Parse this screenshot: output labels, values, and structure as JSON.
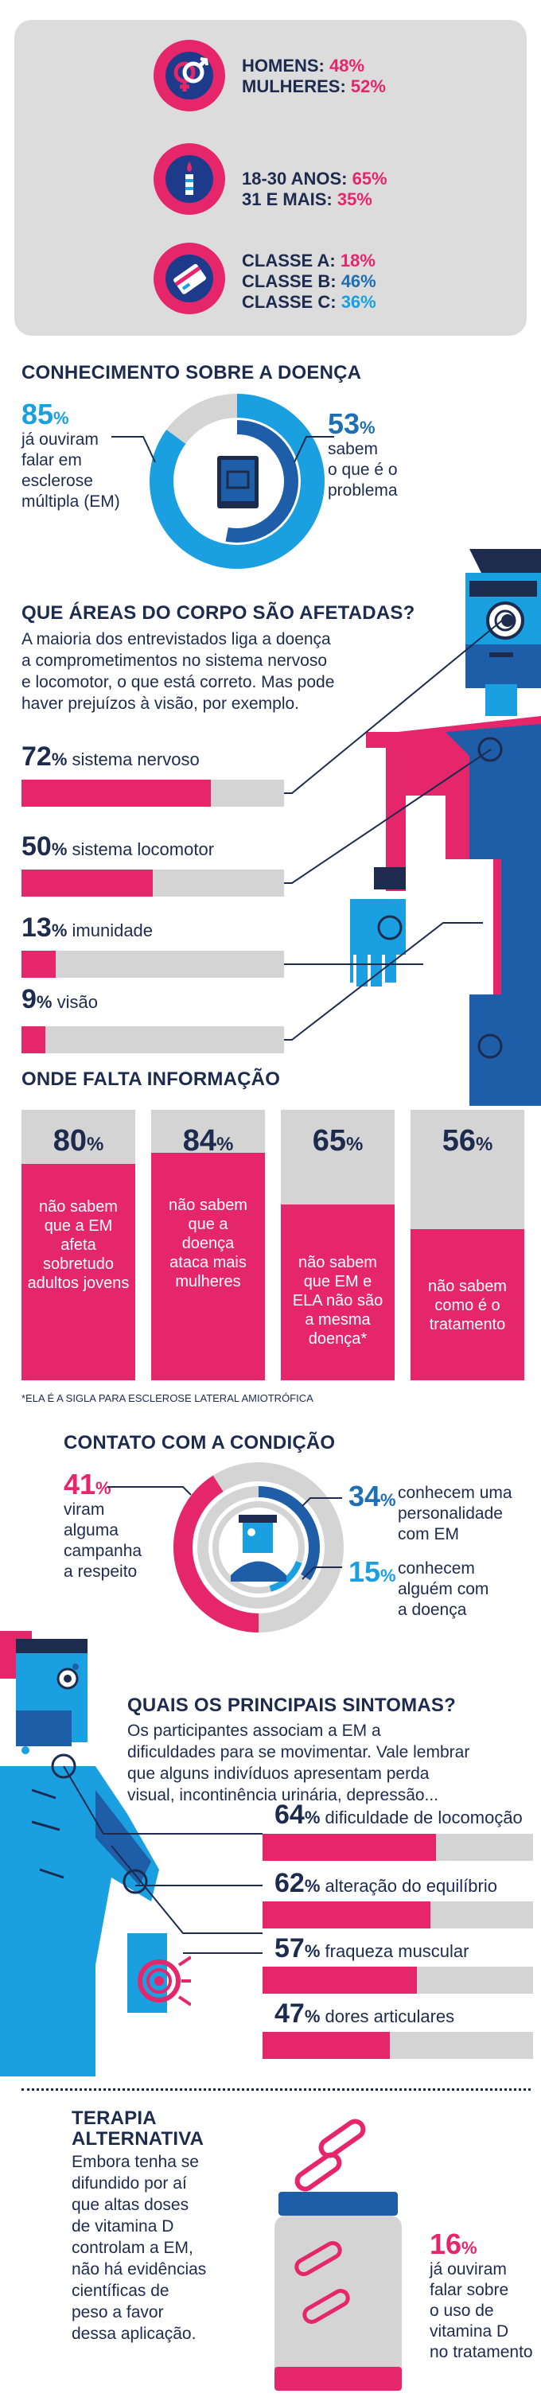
{
  "demographics": {
    "gender": {
      "label1": "HOMENS:",
      "value1": "48%",
      "label2": "MULHERES:",
      "value2": "52%"
    },
    "age": {
      "label1": "18-30 ANOS:",
      "value1": "65%",
      "label2": "31 E MAIS:",
      "value2": "35%"
    },
    "class": {
      "label1": "CLASSE A:",
      "value1": "18%",
      "label2": "CLASSE B:",
      "value2": "46%",
      "label3": "CLASSE C:",
      "value3": "36%"
    }
  },
  "knowledge": {
    "title": "CONHECIMENTO SOBRE A DOENÇA",
    "left_pct": "85",
    "left_unit": "%",
    "left_text": [
      "já ouviram",
      "falar em",
      "esclerose",
      "múltipla (EM)"
    ],
    "right_pct": "53",
    "right_unit": "%",
    "right_text": [
      "sabem",
      "o que é o",
      "problema"
    ],
    "outer_ring": 0.85,
    "inner_ring": 0.53
  },
  "body_areas": {
    "title": "QUE ÁREAS DO CORPO SÃO AFETADAS?",
    "text": [
      "A maioria dos entrevistados liga a doença",
      "a comprometimentos no sistema nervoso",
      "e locomotor, o que está correto. Mas pode",
      "haver prejuízos à visão, por exemplo."
    ],
    "items": [
      {
        "pct": "72",
        "unit": "%",
        "label": "sistema nervoso",
        "value": 0.72
      },
      {
        "pct": "50",
        "unit": "%",
        "label": "sistema locomotor",
        "value": 0.5
      },
      {
        "pct": "13",
        "unit": "%",
        "label": "imunidade",
        "value": 0.13
      },
      {
        "pct": "9",
        "unit": "%",
        "label": "visão",
        "value": 0.09
      }
    ]
  },
  "missing_info": {
    "title": "ONDE FALTA INFORMAÇÃO",
    "columns": [
      {
        "pct": "80",
        "unit": "%",
        "text": [
          "não sabem",
          "que a EM",
          "afeta",
          "sobretudo",
          "adultos jovens"
        ],
        "value": 0.8
      },
      {
        "pct": "84",
        "unit": "%",
        "text": [
          "não sabem",
          "que a",
          "doença",
          "ataca mais",
          "mulheres"
        ],
        "value": 0.84
      },
      {
        "pct": "65",
        "unit": "%",
        "text": [
          "não sabem",
          "que EM e",
          "ELA não são",
          "a mesma",
          "doença*"
        ],
        "value": 0.65
      },
      {
        "pct": "56",
        "unit": "%",
        "text": [
          "não sabem",
          "como é o",
          "tratamento"
        ],
        "value": 0.56
      }
    ],
    "footnote": "*ELA É A SIGLA PARA ESCLEROSE LATERAL AMIOTRÓFICA"
  },
  "contact": {
    "title": "CONTATO COM A CONDIÇÃO",
    "left_pct": "41",
    "left_unit": "%",
    "left_text": [
      "viram",
      "alguma",
      "campanha",
      "a respeito"
    ],
    "right1_pct": "34",
    "right1_unit": "%",
    "right1_text": [
      "conhecem uma",
      "personalidade",
      "com EM"
    ],
    "right2_pct": "15",
    "right2_unit": "%",
    "right2_text": [
      "conhecem",
      "alguém com",
      "a doença"
    ],
    "outer_ring": 0.41,
    "middle_ring": 0.34,
    "inner_ring": 0.15
  },
  "symptoms": {
    "title": "QUAIS OS PRINCIPAIS SINTOMAS?",
    "text": [
      "Os participantes associam a EM a",
      "dificuldades para se movimentar. Vale lembrar",
      "que alguns indivíduos apresentam perda",
      "visual, incontinência urinária, depressão..."
    ],
    "items": [
      {
        "pct": "64",
        "unit": "%",
        "label": "dificuldade de locomoção",
        "value": 0.64
      },
      {
        "pct": "62",
        "unit": "%",
        "label": "alteração do equilíbrio",
        "value": 0.62
      },
      {
        "pct": "57",
        "unit": "%",
        "label": "fraqueza muscular",
        "value": 0.57
      },
      {
        "pct": "47",
        "unit": "%",
        "label": "dores articulares",
        "value": 0.47
      }
    ]
  },
  "therapy": {
    "title": [
      "TERAPIA",
      "ALTERNATIVA"
    ],
    "text": [
      "Embora tenha se",
      "difundido por aí",
      "que altas doses",
      "de vitamina D",
      "controlam a EM,",
      "não há evidências",
      "científicas de",
      "peso a favor",
      "dessa aplicação."
    ],
    "pct": "16",
    "unit": "%",
    "stat_text": [
      "já ouviram",
      "falar sobre",
      "o uso de",
      "vitamina D",
      "no tratamento"
    ],
    "value": 0.16
  },
  "colors": {
    "pink": "#e6266a",
    "navy": "#1d2b4f",
    "blue": "#1aa0e0",
    "dark_blue": "#1e6fb3",
    "gray": "#d4d4d4"
  }
}
